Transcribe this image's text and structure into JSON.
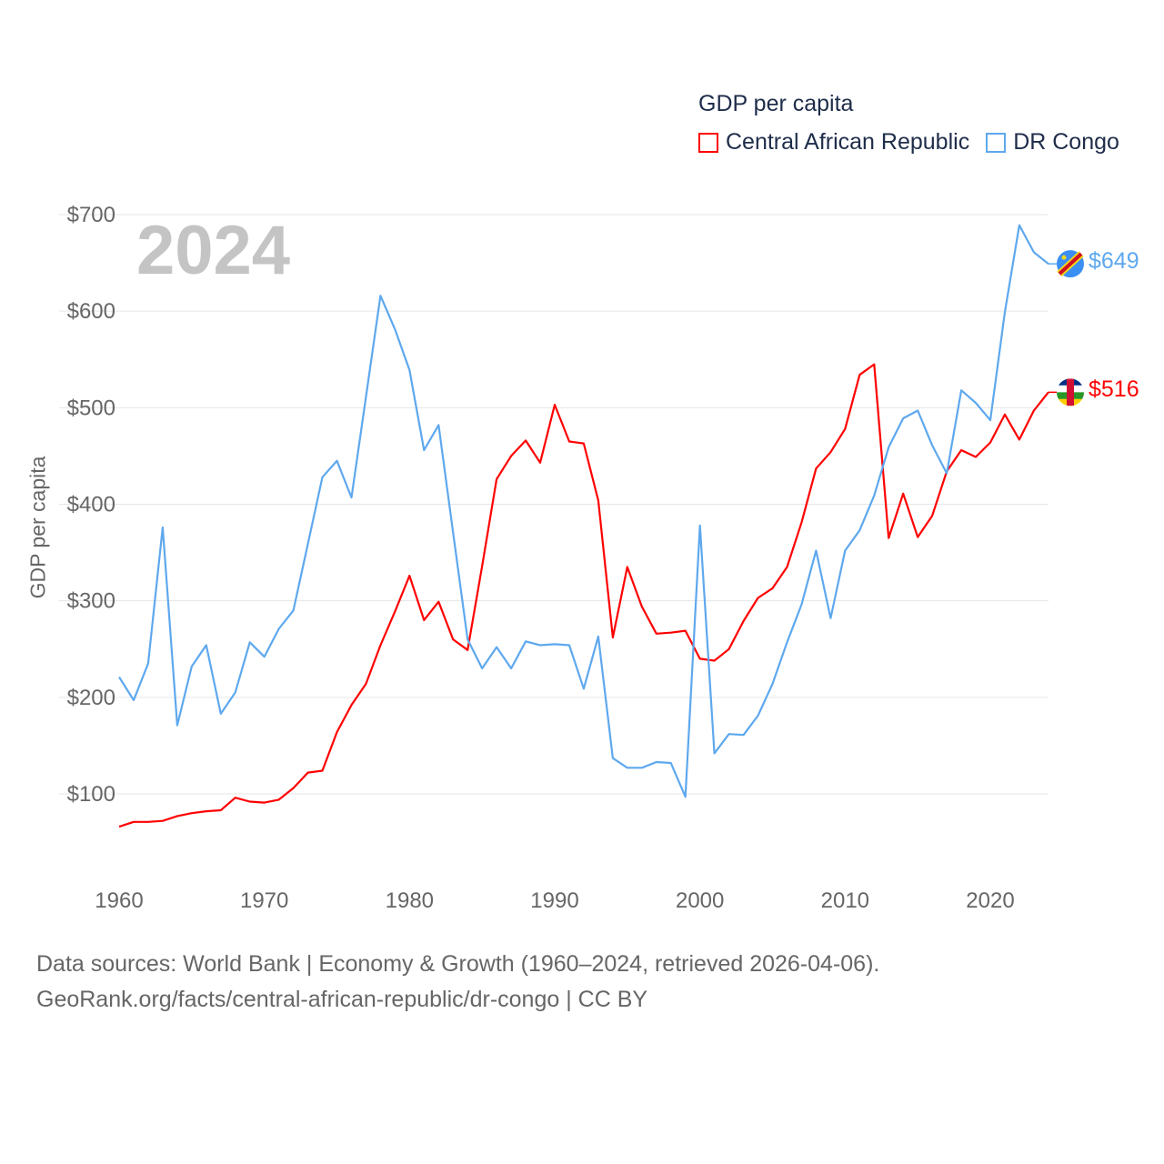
{
  "chart_data": {
    "type": "line",
    "title": "GDP per capita",
    "ylabel": "GDP per capita",
    "xlabel": "",
    "year_label": "2024",
    "xlim": [
      1960,
      2024
    ],
    "ylim": [
      50,
      700
    ],
    "x_ticks": [
      "1960",
      "1970",
      "1980",
      "1990",
      "2000",
      "2010",
      "2020"
    ],
    "y_ticks": [
      {
        "v": 100,
        "label": "$100"
      },
      {
        "v": 200,
        "label": "$200"
      },
      {
        "v": 300,
        "label": "$300"
      },
      {
        "v": 400,
        "label": "$400"
      },
      {
        "v": 500,
        "label": "$500"
      },
      {
        "v": 600,
        "label": "$600"
      },
      {
        "v": 700,
        "label": "$700"
      }
    ],
    "grid": true,
    "legend_position": "top-right",
    "x_start": 1960,
    "series": [
      {
        "name": "Central African Republic",
        "color": "#ff0000",
        "end_label": "$516",
        "values": [
          66,
          71,
          71,
          72,
          77,
          80,
          82,
          83,
          96,
          92,
          91,
          94,
          106,
          122,
          124,
          164,
          192,
          214,
          254,
          289,
          326,
          280,
          299,
          260,
          249,
          336,
          426,
          450,
          466,
          443,
          503,
          465,
          463,
          404,
          262,
          335,
          294,
          266,
          267,
          269,
          240,
          238,
          250,
          279,
          303,
          313,
          335,
          381,
          437,
          454,
          478,
          534,
          545,
          365,
          411,
          366,
          388,
          434,
          456,
          449,
          464,
          493,
          467,
          497,
          516
        ]
      },
      {
        "name": "DR Congo",
        "color": "#5ea8ee",
        "end_label": "$649",
        "values": [
          221,
          197,
          235,
          376,
          171,
          232,
          254,
          183,
          205,
          257,
          242,
          271,
          290,
          359,
          428,
          445,
          407,
          511,
          616,
          581,
          539,
          456,
          482,
          371,
          260,
          230,
          252,
          230,
          258,
          254,
          255,
          254,
          209,
          263,
          137,
          127,
          127,
          133,
          132,
          97,
          378,
          142,
          162,
          161,
          181,
          214,
          257,
          296,
          352,
          282,
          352,
          373,
          409,
          459,
          489,
          497,
          461,
          432,
          518,
          505,
          487,
          599,
          689,
          661,
          649
        ]
      }
    ]
  },
  "footer": {
    "line1": "Data sources: World Bank | Economy & Growth (1960–2024, retrieved 2026-04-06).",
    "line2": "GeoRank.org/facts/central-african-republic/dr-congo | CC BY"
  }
}
